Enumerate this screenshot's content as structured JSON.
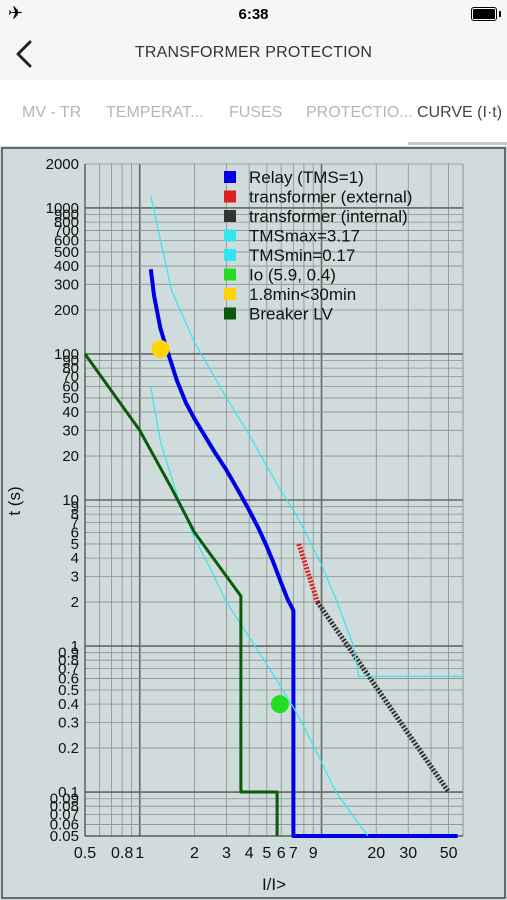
{
  "status_bar": {
    "time": "6:38",
    "airplane_icon": "airplane-icon",
    "battery_icon": "battery-icon"
  },
  "nav": {
    "title": "TRANSFORMER PROTECTION",
    "back_icon": "chevron-left-icon"
  },
  "tabs": [
    {
      "label": "MV - TR",
      "active": false
    },
    {
      "label": "TEMPERAT...",
      "active": false
    },
    {
      "label": "FUSES",
      "active": false
    },
    {
      "label": "PROTECTIO...",
      "active": false
    },
    {
      "label": "CURVE (I·t)",
      "active": true
    }
  ],
  "chart_data": {
    "type": "line",
    "xscale": "log",
    "yscale": "log",
    "xlim": [
      0.5,
      60
    ],
    "ylim": [
      0.05,
      2000
    ],
    "xlabel": "I/I>",
    "ylabel": "t (s)",
    "grid": true,
    "legend_position": "top-right",
    "background": "#cfdcdb",
    "x_ticks": [
      "0.5",
      "0.8",
      "1",
      "2",
      "3",
      "4",
      "5",
      "6",
      "7",
      "9",
      "20",
      "30",
      "50"
    ],
    "y_ticks": [
      "0.05",
      "0.06",
      "0.07",
      "0.08",
      "0.09",
      "0.1",
      "0.2",
      "0.3",
      "0.4",
      "0.5",
      "0.6",
      "0.7",
      "0.8",
      "0.9",
      "1",
      "2",
      "3",
      "4",
      "5",
      "6",
      "7",
      "8",
      "9",
      "10",
      "20",
      "30",
      "40",
      "50",
      "60",
      "70",
      "80",
      "90",
      "100",
      "200",
      "300",
      "400",
      "500",
      "600",
      "700",
      "800",
      "900",
      "1000",
      "2000"
    ],
    "series": [
      {
        "name": "Relay (TMS=1)",
        "color": "#0000e6",
        "style": "line",
        "x": [
          1.15,
          1.2,
          1.3,
          1.4,
          1.5,
          1.6,
          1.8,
          2,
          2.3,
          2.6,
          3,
          3.5,
          4,
          4.5,
          5,
          5.5,
          6,
          6.5,
          7,
          7,
          7,
          56
        ],
        "y": [
          380,
          250,
          150,
          110,
          85,
          66,
          46,
          36,
          27,
          21,
          16,
          11.5,
          8.5,
          6.4,
          4.8,
          3.6,
          2.7,
          2.1,
          1.75,
          1.75,
          0.05,
          0.05
        ]
      },
      {
        "name": "transformer (external)",
        "color": "#e02020",
        "style": "dotted",
        "x": [
          7.5,
          9.5
        ],
        "y": [
          5,
          2
        ]
      },
      {
        "name": "transformer (internal)",
        "color": "#333333",
        "style": "dotted",
        "x": [
          9.5,
          50
        ],
        "y": [
          2,
          0.1
        ]
      },
      {
        "name": "TMSmax=3.17",
        "color": "#33e6ee",
        "style": "line",
        "x": [
          1.15,
          1.5,
          2,
          3,
          4,
          5,
          6,
          7,
          8,
          10,
          12,
          15,
          16,
          60
        ],
        "y": [
          1200,
          270,
          120,
          50,
          28,
          17,
          11.5,
          8.5,
          6.3,
          3.6,
          2.1,
          1.0,
          0.62,
          0.62
        ]
      },
      {
        "name": "TMSmin=0.17",
        "color": "#33e6ee",
        "style": "line",
        "x": [
          1.15,
          1.3,
          1.6,
          2,
          2.5,
          3,
          4,
          5,
          6,
          7,
          8,
          10,
          12,
          15,
          18
        ],
        "y": [
          60,
          25,
          11,
          5.5,
          3.2,
          2.0,
          1.15,
          0.75,
          0.52,
          0.38,
          0.28,
          0.16,
          0.1,
          0.068,
          0.05
        ]
      },
      {
        "name": "Io (5.9, 0.4)",
        "color": "#22dd22",
        "style": "point",
        "x": [
          5.9
        ],
        "y": [
          0.4
        ]
      },
      {
        "name": "1.8min<30min",
        "color": "#ffd400",
        "style": "point",
        "x": [
          1.3
        ],
        "y": [
          108
        ]
      },
      {
        "name": "Breaker LV",
        "color": "#0a5a0a",
        "style": "line",
        "x": [
          0.5,
          1,
          1.5,
          2,
          3,
          3.6,
          3.6,
          3.7,
          3.7,
          5.7,
          5.7
        ],
        "y": [
          100,
          30,
          12,
          6,
          3,
          2.2,
          0.1,
          0.1,
          0.1,
          0.1,
          0.05
        ]
      }
    ]
  }
}
